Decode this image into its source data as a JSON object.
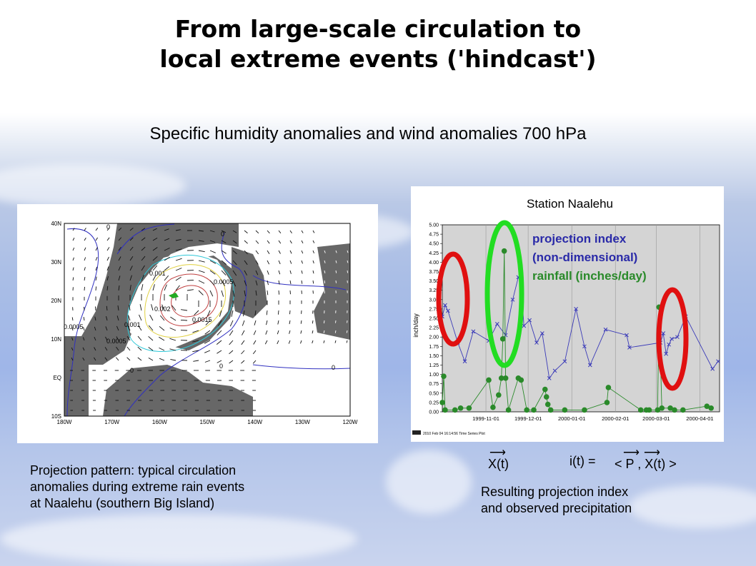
{
  "slide": {
    "title_line1": "From large-scale circulation to",
    "title_line2": "local extreme events ('hindcast')",
    "subtitle": "Specific humidity anomalies and wind anomalies 700 hPa",
    "left_caption": [
      "Projection pattern: typical circulation",
      "anomalies during extreme rain events",
      "at Naalehu (southern Big Island)"
    ],
    "right_caption": [
      "Resulting projection index",
      "and observed precipitation"
    ],
    "formula": {
      "xt": "X(t)",
      "it": "i(t) =",
      "bracket": "< P , X(t) >"
    }
  },
  "map": {
    "lat_labels": [
      "40N",
      "30N",
      "20N",
      "10N",
      "EQ",
      "10S"
    ],
    "lon_labels": [
      "180W",
      "170W",
      "160W",
      "150W",
      "140W",
      "130W",
      "120W"
    ],
    "contour_labels": [
      "0",
      "0",
      "0",
      "0",
      "0",
      "0.001",
      "0.002",
      "0.0015",
      "0.001",
      "0.0005",
      "0.0005",
      "0.0005"
    ],
    "colors": {
      "shade": "#676767",
      "contour_zero": "#3030c0",
      "contour_low": "#30c8d8",
      "contour_mid": "#e0d040",
      "contour_high": "#c04040"
    }
  },
  "chart_data": {
    "type": "line",
    "title": "Station Naalehu",
    "ylabel": "inch/day",
    "ylim": [
      0,
      5
    ],
    "yticks": [
      "0.00",
      "0.25",
      "0.50",
      "0.75",
      "1.00",
      "1.25",
      "1.50",
      "1.75",
      "2.00",
      "2.25",
      "2.50",
      "2.75",
      "3.00",
      "3.25",
      "3.50",
      "3.75",
      "4.00",
      "4.25",
      "4.50",
      "4.75",
      "5.00"
    ],
    "x_start": "1999-10-01",
    "x_end": "2000-04-15",
    "xticks": [
      "1999-11-01",
      "1999-12-01",
      "2000-01-01",
      "2000-02-01",
      "2000-03-01",
      "2000-04-01"
    ],
    "series": [
      {
        "name": "projection index (non-dimensional)",
        "color": "#3a3ab8",
        "marker": "x",
        "points": [
          [
            "1999-10-01",
            2.55
          ],
          [
            "1999-10-03",
            2.85
          ],
          [
            "1999-10-05",
            2.7
          ],
          [
            "1999-10-12",
            1.85
          ],
          [
            "1999-10-17",
            1.35
          ],
          [
            "1999-10-23",
            2.15
          ],
          [
            "1999-11-03",
            1.9
          ],
          [
            "1999-11-09",
            2.35
          ],
          [
            "1999-11-15",
            2.05
          ],
          [
            "1999-11-20",
            3.0
          ],
          [
            "1999-11-24",
            3.6
          ],
          [
            "1999-11-26",
            3.45
          ],
          [
            "1999-11-28",
            2.3
          ],
          [
            "1999-12-02",
            2.45
          ],
          [
            "1999-12-07",
            1.85
          ],
          [
            "1999-12-11",
            2.1
          ],
          [
            "1999-12-16",
            0.9
          ],
          [
            "1999-12-20",
            1.1
          ],
          [
            "1999-12-27",
            1.35
          ],
          [
            "2000-01-04",
            2.75
          ],
          [
            "2000-01-10",
            1.75
          ],
          [
            "2000-01-14",
            1.25
          ],
          [
            "2000-01-25",
            2.2
          ],
          [
            "2000-02-09",
            2.05
          ],
          [
            "2000-02-11",
            1.72
          ],
          [
            "2000-03-04",
            1.85
          ],
          [
            "2000-03-06",
            2.1
          ],
          [
            "2000-03-08",
            1.55
          ],
          [
            "2000-03-10",
            1.8
          ],
          [
            "2000-03-12",
            1.95
          ],
          [
            "2000-03-16",
            2.0
          ],
          [
            "2000-03-22",
            2.55
          ],
          [
            "2000-04-10",
            1.15
          ],
          [
            "2000-04-14",
            1.35
          ]
        ]
      },
      {
        "name": "rainfall (inches/day)",
        "color": "#2a8a2a",
        "marker": "dot",
        "points": [
          [
            "1999-10-01",
            0.25
          ],
          [
            "1999-10-02",
            0.95
          ],
          [
            "1999-10-03",
            0.05
          ],
          [
            "1999-10-10",
            0.05
          ],
          [
            "1999-10-14",
            0.1
          ],
          [
            "1999-10-20",
            0.1
          ],
          [
            "1999-11-03",
            0.85
          ],
          [
            "1999-11-06",
            0.12
          ],
          [
            "1999-11-10",
            0.45
          ],
          [
            "1999-11-12",
            0.9
          ],
          [
            "1999-11-13",
            1.95
          ],
          [
            "1999-11-14",
            4.3
          ],
          [
            "1999-11-15",
            0.9
          ],
          [
            "1999-11-17",
            0.05
          ],
          [
            "1999-11-24",
            0.9
          ],
          [
            "1999-11-26",
            0.85
          ],
          [
            "1999-11-30",
            0.05
          ],
          [
            "1999-12-05",
            0.05
          ],
          [
            "1999-12-13",
            0.6
          ],
          [
            "1999-12-14",
            0.4
          ],
          [
            "1999-12-15",
            0.2
          ],
          [
            "1999-12-17",
            0.05
          ],
          [
            "1999-12-27",
            0.05
          ],
          [
            "2000-01-10",
            0.05
          ],
          [
            "2000-01-26",
            0.25
          ],
          [
            "2000-01-27",
            0.65
          ],
          [
            "2000-02-19",
            0.05
          ],
          [
            "2000-02-23",
            0.05
          ],
          [
            "2000-02-25",
            0.05
          ],
          [
            "2000-03-02",
            0.05
          ],
          [
            "2000-03-03",
            2.8
          ],
          [
            "2000-03-05",
            0.1
          ],
          [
            "2000-03-11",
            0.1
          ],
          [
            "2000-03-14",
            0.05
          ],
          [
            "2000-03-20",
            0.05
          ],
          [
            "2000-04-06",
            0.15
          ],
          [
            "2000-04-09",
            0.1
          ]
        ]
      }
    ],
    "legend_lines": [
      "projection index",
      "(non-dimensional)",
      "rainfall (inches/day)"
    ],
    "footer": "2010 Feb 04 16:14:56 Time Series Plot"
  }
}
